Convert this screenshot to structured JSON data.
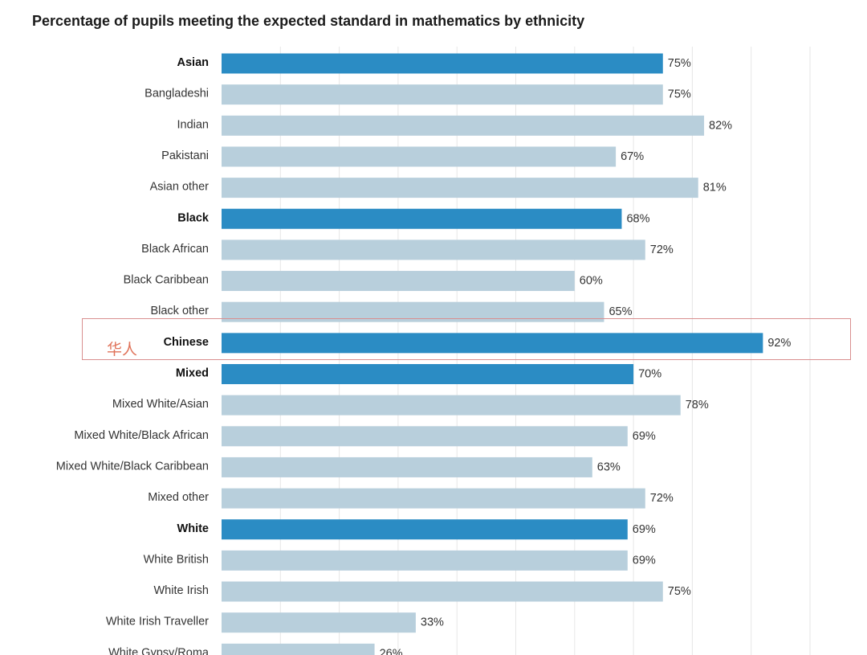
{
  "chart_data": {
    "type": "bar",
    "orientation": "horizontal",
    "title": "Percentage of pupils meeting the expected standard in mathematics by ethnicity",
    "xlabel": "",
    "ylabel": "",
    "xlim": [
      0,
      100
    ],
    "grid": true,
    "value_suffix": "%",
    "colors": {
      "group": "#2b8cc4",
      "subgroup": "#b8cfdc"
    },
    "categories": [
      {
        "label": "Asian",
        "value": 75,
        "group": true
      },
      {
        "label": "Bangladeshi",
        "value": 75,
        "group": false
      },
      {
        "label": "Indian",
        "value": 82,
        "group": false
      },
      {
        "label": "Pakistani",
        "value": 67,
        "group": false
      },
      {
        "label": "Asian other",
        "value": 81,
        "group": false
      },
      {
        "label": "Black",
        "value": 68,
        "group": true
      },
      {
        "label": "Black African",
        "value": 72,
        "group": false
      },
      {
        "label": "Black Caribbean",
        "value": 60,
        "group": false
      },
      {
        "label": "Black other",
        "value": 65,
        "group": false
      },
      {
        "label": "Chinese",
        "value": 92,
        "group": true
      },
      {
        "label": "Mixed",
        "value": 70,
        "group": true
      },
      {
        "label": "Mixed White/Asian",
        "value": 78,
        "group": false
      },
      {
        "label": "Mixed White/Black African",
        "value": 69,
        "group": false
      },
      {
        "label": "Mixed White/Black Caribbean",
        "value": 63,
        "group": false
      },
      {
        "label": "Mixed other",
        "value": 72,
        "group": false
      },
      {
        "label": "White",
        "value": 69,
        "group": true
      },
      {
        "label": "White British",
        "value": 69,
        "group": false
      },
      {
        "label": "White Irish",
        "value": 75,
        "group": false
      },
      {
        "label": "White Irish Traveller",
        "value": 33,
        "group": false
      },
      {
        "label": "White Gypsy/Roma",
        "value": 26,
        "group": false
      }
    ],
    "annotation": {
      "text": "华人",
      "target": "Chinese",
      "color": "#e0735a"
    }
  }
}
